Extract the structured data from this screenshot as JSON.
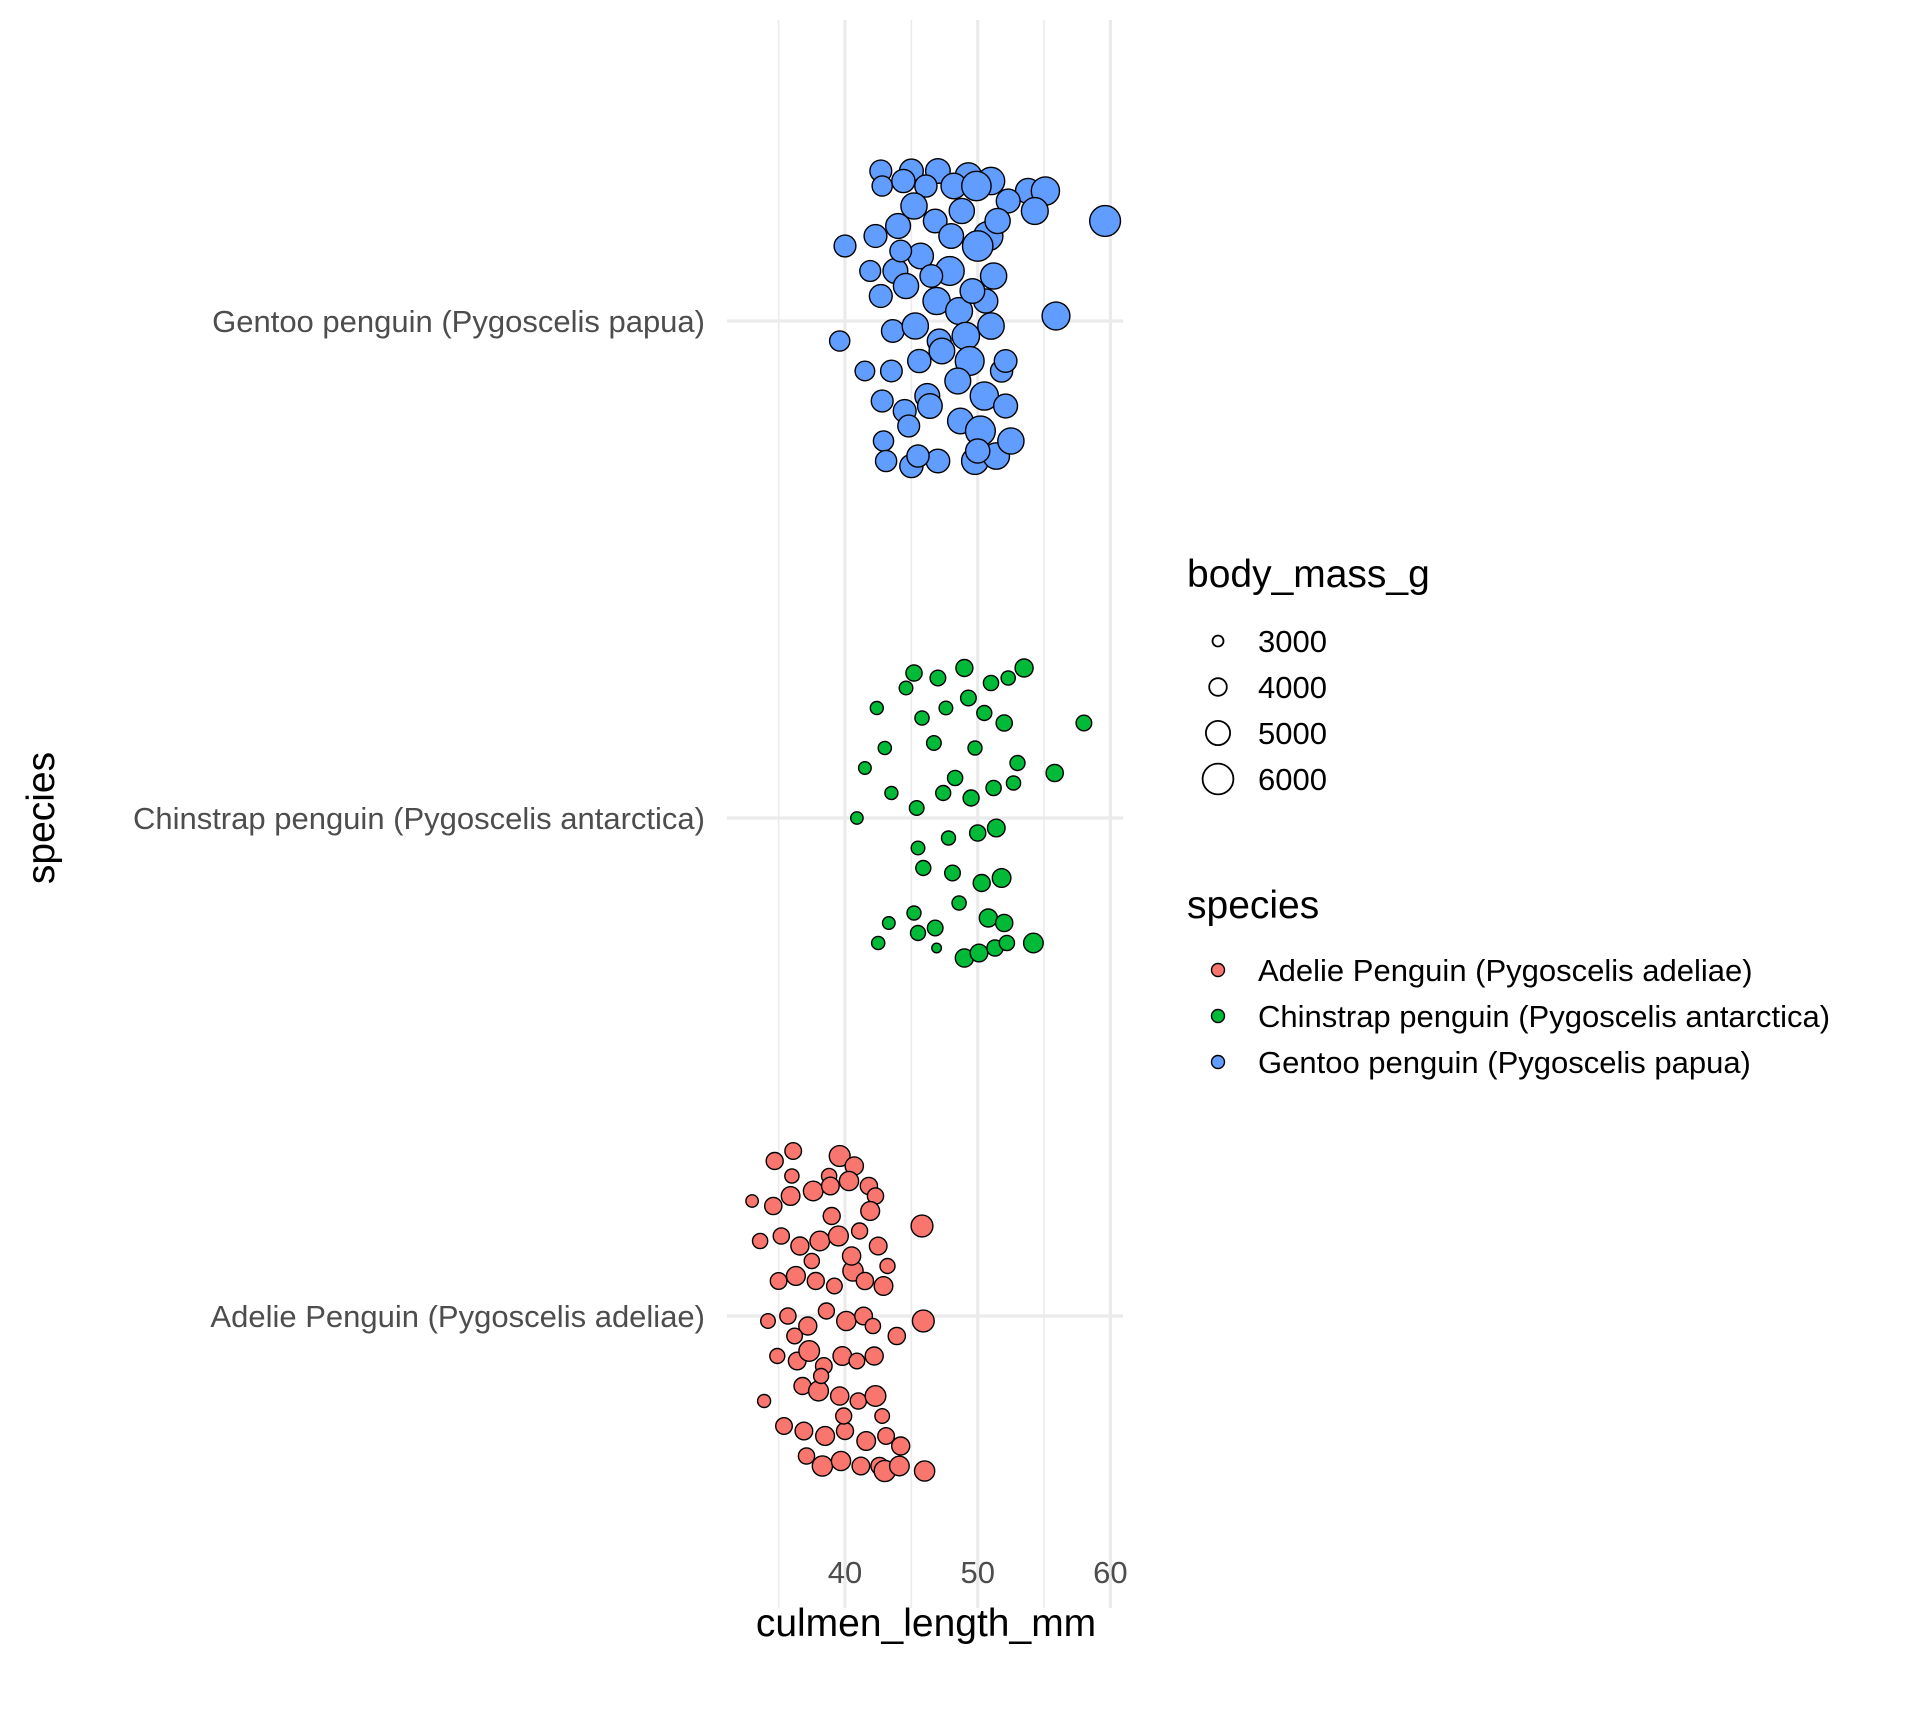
{
  "chart_data": {
    "type": "scatter",
    "xlabel": "culmen_length_mm",
    "ylabel": "species",
    "xlim": [
      31.3,
      60.9
    ],
    "x_ticks": [
      40,
      50,
      60
    ],
    "categories": [
      "Adelie Penguin (Pygoscelis adeliae)",
      "Chinstrap penguin (Pygoscelis antarctica)",
      "Gentoo penguin (Pygoscelis papua)"
    ],
    "grid": true,
    "legend_position": "right",
    "size_legend": {
      "title": "body_mass_g",
      "values": [
        3000,
        4000,
        5000,
        6000
      ],
      "labels": [
        "3000",
        "4000",
        "5000",
        "6000"
      ]
    },
    "color_legend": {
      "title": "species",
      "entries": [
        {
          "label": "Adelie Penguin (Pygoscelis adeliae)",
          "color": "#F8766D"
        },
        {
          "label": "Chinstrap penguin (Pygoscelis antarctica)",
          "color": "#00BA38"
        },
        {
          "label": "Gentoo penguin (Pygoscelis papua)",
          "color": "#619CFF"
        }
      ]
    },
    "series": [
      {
        "color": "#F8766D",
        "points": [
          [
            34.7,
            0.31,
            3900
          ],
          [
            36.1,
            0.33,
            3850
          ],
          [
            39.6,
            0.32,
            4500
          ],
          [
            40.7,
            0.3,
            4100
          ],
          [
            38.8,
            0.28,
            3650
          ],
          [
            33.0,
            0.23,
            3200
          ],
          [
            34.6,
            0.22,
            3950
          ],
          [
            35.9,
            0.24,
            4150
          ],
          [
            37.6,
            0.25,
            4300
          ],
          [
            38.9,
            0.26,
            4000
          ],
          [
            40.3,
            0.27,
            4250
          ],
          [
            41.8,
            0.26,
            3950
          ],
          [
            42.3,
            0.24,
            3800
          ],
          [
            45.8,
            0.18,
            4650
          ],
          [
            33.6,
            0.15,
            3650
          ],
          [
            35.2,
            0.16,
            3800
          ],
          [
            36.6,
            0.14,
            4050
          ],
          [
            38.1,
            0.15,
            4300
          ],
          [
            39.5,
            0.16,
            4350
          ],
          [
            41.1,
            0.17,
            3750
          ],
          [
            42.5,
            0.14,
            4000
          ],
          [
            43.2,
            0.1,
            3600
          ],
          [
            35.0,
            0.07,
            3850
          ],
          [
            36.3,
            0.08,
            4200
          ],
          [
            37.8,
            0.07,
            3900
          ],
          [
            39.2,
            0.06,
            3700
          ],
          [
            40.6,
            0.09,
            4400
          ],
          [
            41.5,
            0.07,
            3950
          ],
          [
            42.9,
            0.06,
            4150
          ],
          [
            34.2,
            -0.01,
            3550
          ],
          [
            35.7,
            0.0,
            3800
          ],
          [
            37.2,
            -0.02,
            4050
          ],
          [
            38.6,
            0.01,
            3750
          ],
          [
            40.1,
            -0.01,
            4250
          ],
          [
            41.4,
            0.0,
            4000
          ],
          [
            42.1,
            -0.02,
            3650
          ],
          [
            45.9,
            -0.01,
            4650
          ],
          [
            43.9,
            -0.04,
            3950
          ],
          [
            34.9,
            -0.08,
            3600
          ],
          [
            36.4,
            -0.09,
            4000
          ],
          [
            37.3,
            -0.07,
            4450
          ],
          [
            38.4,
            -0.1,
            3850
          ],
          [
            39.8,
            -0.08,
            4150
          ],
          [
            40.9,
            -0.09,
            3700
          ],
          [
            42.2,
            -0.08,
            4050
          ],
          [
            36.8,
            -0.14,
            3900
          ],
          [
            38.0,
            -0.15,
            4350
          ],
          [
            39.6,
            -0.16,
            4100
          ],
          [
            41.0,
            -0.17,
            3800
          ],
          [
            42.3,
            -0.16,
            4450
          ],
          [
            33.9,
            -0.17,
            3300
          ],
          [
            35.4,
            -0.22,
            3850
          ],
          [
            36.9,
            -0.23,
            4000
          ],
          [
            38.5,
            -0.24,
            4200
          ],
          [
            40.0,
            -0.23,
            3900
          ],
          [
            41.6,
            -0.25,
            4150
          ],
          [
            43.1,
            -0.24,
            3850
          ],
          [
            44.2,
            -0.26,
            4050
          ],
          [
            37.1,
            -0.28,
            3800
          ],
          [
            38.3,
            -0.3,
            4400
          ],
          [
            39.7,
            -0.29,
            4250
          ],
          [
            41.2,
            -0.3,
            4000
          ],
          [
            42.6,
            -0.3,
            3950
          ],
          [
            43.0,
            -0.31,
            4550
          ],
          [
            44.1,
            -0.3,
            4300
          ],
          [
            46.0,
            -0.31,
            4400
          ],
          [
            36.2,
            -0.04,
            3700
          ],
          [
            39.0,
            0.2,
            3900
          ],
          [
            40.5,
            0.12,
            4100
          ],
          [
            37.5,
            0.11,
            3650
          ],
          [
            39.9,
            -0.2,
            3750
          ],
          [
            38.2,
            -0.12,
            3600
          ],
          [
            41.9,
            0.21,
            4200
          ],
          [
            36.0,
            0.28,
            3500
          ],
          [
            42.8,
            -0.2,
            3550
          ]
        ]
      },
      {
        "color": "#00BA38",
        "points": [
          [
            42.4,
            0.22,
            3300
          ],
          [
            45.2,
            0.29,
            3800
          ],
          [
            47.0,
            0.28,
            3700
          ],
          [
            49.0,
            0.3,
            3900
          ],
          [
            51.0,
            0.27,
            3650
          ],
          [
            52.3,
            0.28,
            3500
          ],
          [
            53.5,
            0.3,
            4050
          ],
          [
            41.5,
            0.1,
            3250
          ],
          [
            43.0,
            0.14,
            3350
          ],
          [
            45.8,
            0.2,
            3500
          ],
          [
            47.6,
            0.22,
            3400
          ],
          [
            49.3,
            0.24,
            3700
          ],
          [
            50.5,
            0.21,
            3600
          ],
          [
            52.0,
            0.19,
            3800
          ],
          [
            58.0,
            0.19,
            3700
          ],
          [
            40.9,
            -0.0,
            3200
          ],
          [
            45.4,
            0.02,
            3550
          ],
          [
            47.4,
            0.05,
            3600
          ],
          [
            49.5,
            0.04,
            3750
          ],
          [
            51.2,
            0.06,
            3650
          ],
          [
            52.7,
            0.07,
            3500
          ],
          [
            55.8,
            0.09,
            3950
          ],
          [
            45.5,
            -0.06,
            3400
          ],
          [
            47.8,
            -0.04,
            3450
          ],
          [
            50.0,
            -0.03,
            3800
          ],
          [
            51.4,
            -0.02,
            4000
          ],
          [
            45.9,
            -0.1,
            3600
          ],
          [
            48.1,
            -0.11,
            3700
          ],
          [
            50.3,
            -0.13,
            3900
          ],
          [
            51.8,
            -0.12,
            4150
          ],
          [
            43.3,
            -0.21,
            3250
          ],
          [
            45.2,
            -0.19,
            3450
          ],
          [
            48.6,
            -0.17,
            3500
          ],
          [
            50.8,
            -0.2,
            4050
          ],
          [
            52.0,
            -0.21,
            3950
          ],
          [
            42.5,
            -0.25,
            3350
          ],
          [
            45.5,
            -0.23,
            3600
          ],
          [
            46.8,
            -0.22,
            3700
          ],
          [
            49.0,
            -0.28,
            4100
          ],
          [
            50.1,
            -0.27,
            4000
          ],
          [
            51.3,
            -0.26,
            3800
          ],
          [
            52.2,
            -0.25,
            3650
          ],
          [
            54.2,
            -0.25,
            4300
          ],
          [
            46.9,
            -0.26,
            2800
          ],
          [
            43.5,
            0.05,
            3300
          ],
          [
            46.7,
            0.15,
            3550
          ],
          [
            49.8,
            0.14,
            3450
          ],
          [
            53.0,
            0.11,
            3600
          ],
          [
            44.6,
            0.26,
            3400
          ],
          [
            48.3,
            0.08,
            3650
          ]
        ]
      },
      {
        "color": "#619CFF",
        "points": [
          [
            42.7,
            0.3,
            4650
          ],
          [
            45.0,
            0.3,
            4950
          ],
          [
            47.0,
            0.3,
            5050
          ],
          [
            49.3,
            0.29,
            5350
          ],
          [
            51.0,
            0.28,
            5500
          ],
          [
            53.8,
            0.26,
            5150
          ],
          [
            55.1,
            0.26,
            5600
          ],
          [
            59.6,
            0.2,
            6000
          ],
          [
            42.8,
            0.27,
            4400
          ],
          [
            44.4,
            0.28,
            4850
          ],
          [
            46.1,
            0.27,
            4700
          ],
          [
            48.2,
            0.27,
            5200
          ],
          [
            49.9,
            0.27,
            5800
          ],
          [
            52.3,
            0.24,
            4950
          ],
          [
            54.3,
            0.22,
            5400
          ],
          [
            42.3,
            0.17,
            4800
          ],
          [
            44.0,
            0.19,
            5100
          ],
          [
            45.2,
            0.23,
            5300
          ],
          [
            46.8,
            0.2,
            4900
          ],
          [
            48.8,
            0.22,
            5150
          ],
          [
            50.8,
            0.17,
            5750
          ],
          [
            41.9,
            0.1,
            4500
          ],
          [
            43.8,
            0.1,
            5100
          ],
          [
            45.7,
            0.13,
            5200
          ],
          [
            47.9,
            0.1,
            5700
          ],
          [
            50.0,
            0.15,
            5950
          ],
          [
            51.2,
            0.09,
            5300
          ],
          [
            40.0,
            0.15,
            4650
          ],
          [
            42.7,
            0.05,
            4800
          ],
          [
            44.6,
            0.07,
            5150
          ],
          [
            46.9,
            0.04,
            5450
          ],
          [
            48.6,
            0.02,
            5400
          ],
          [
            50.6,
            0.04,
            5000
          ],
          [
            55.9,
            0.01,
            5550
          ],
          [
            43.6,
            -0.02,
            4750
          ],
          [
            45.3,
            -0.01,
            5300
          ],
          [
            47.1,
            -0.04,
            4950
          ],
          [
            49.1,
            -0.03,
            5500
          ],
          [
            51.0,
            -0.01,
            5350
          ],
          [
            43.5,
            -0.1,
            4600
          ],
          [
            45.6,
            -0.08,
            4850
          ],
          [
            47.3,
            -0.06,
            5200
          ],
          [
            49.4,
            -0.08,
            5700
          ],
          [
            51.8,
            -0.1,
            4700
          ],
          [
            39.6,
            -0.04,
            4400
          ],
          [
            41.5,
            -0.1,
            4300
          ],
          [
            42.8,
            -0.16,
            4650
          ],
          [
            44.5,
            -0.18,
            4800
          ],
          [
            46.2,
            -0.15,
            5100
          ],
          [
            48.5,
            -0.12,
            5250
          ],
          [
            50.5,
            -0.15,
            5600
          ],
          [
            52.1,
            -0.08,
            4750
          ],
          [
            42.9,
            -0.24,
            4400
          ],
          [
            44.8,
            -0.21,
            4650
          ],
          [
            46.4,
            -0.17,
            5050
          ],
          [
            48.7,
            -0.2,
            5200
          ],
          [
            50.2,
            -0.22,
            5850
          ],
          [
            52.1,
            -0.17,
            4950
          ],
          [
            43.1,
            -0.28,
            4550
          ],
          [
            45.0,
            -0.29,
            4850
          ],
          [
            47.0,
            -0.28,
            4900
          ],
          [
            49.8,
            -0.28,
            5400
          ],
          [
            51.4,
            -0.27,
            5350
          ],
          [
            52.5,
            -0.24,
            5300
          ],
          [
            45.5,
            -0.27,
            4700
          ],
          [
            50.0,
            -0.26,
            5000
          ],
          [
            44.2,
            0.14,
            4600
          ],
          [
            48.0,
            0.17,
            5050
          ],
          [
            46.5,
            0.09,
            4750
          ],
          [
            49.6,
            0.06,
            5050
          ],
          [
            51.5,
            0.2,
            5150
          ]
        ]
      }
    ]
  }
}
